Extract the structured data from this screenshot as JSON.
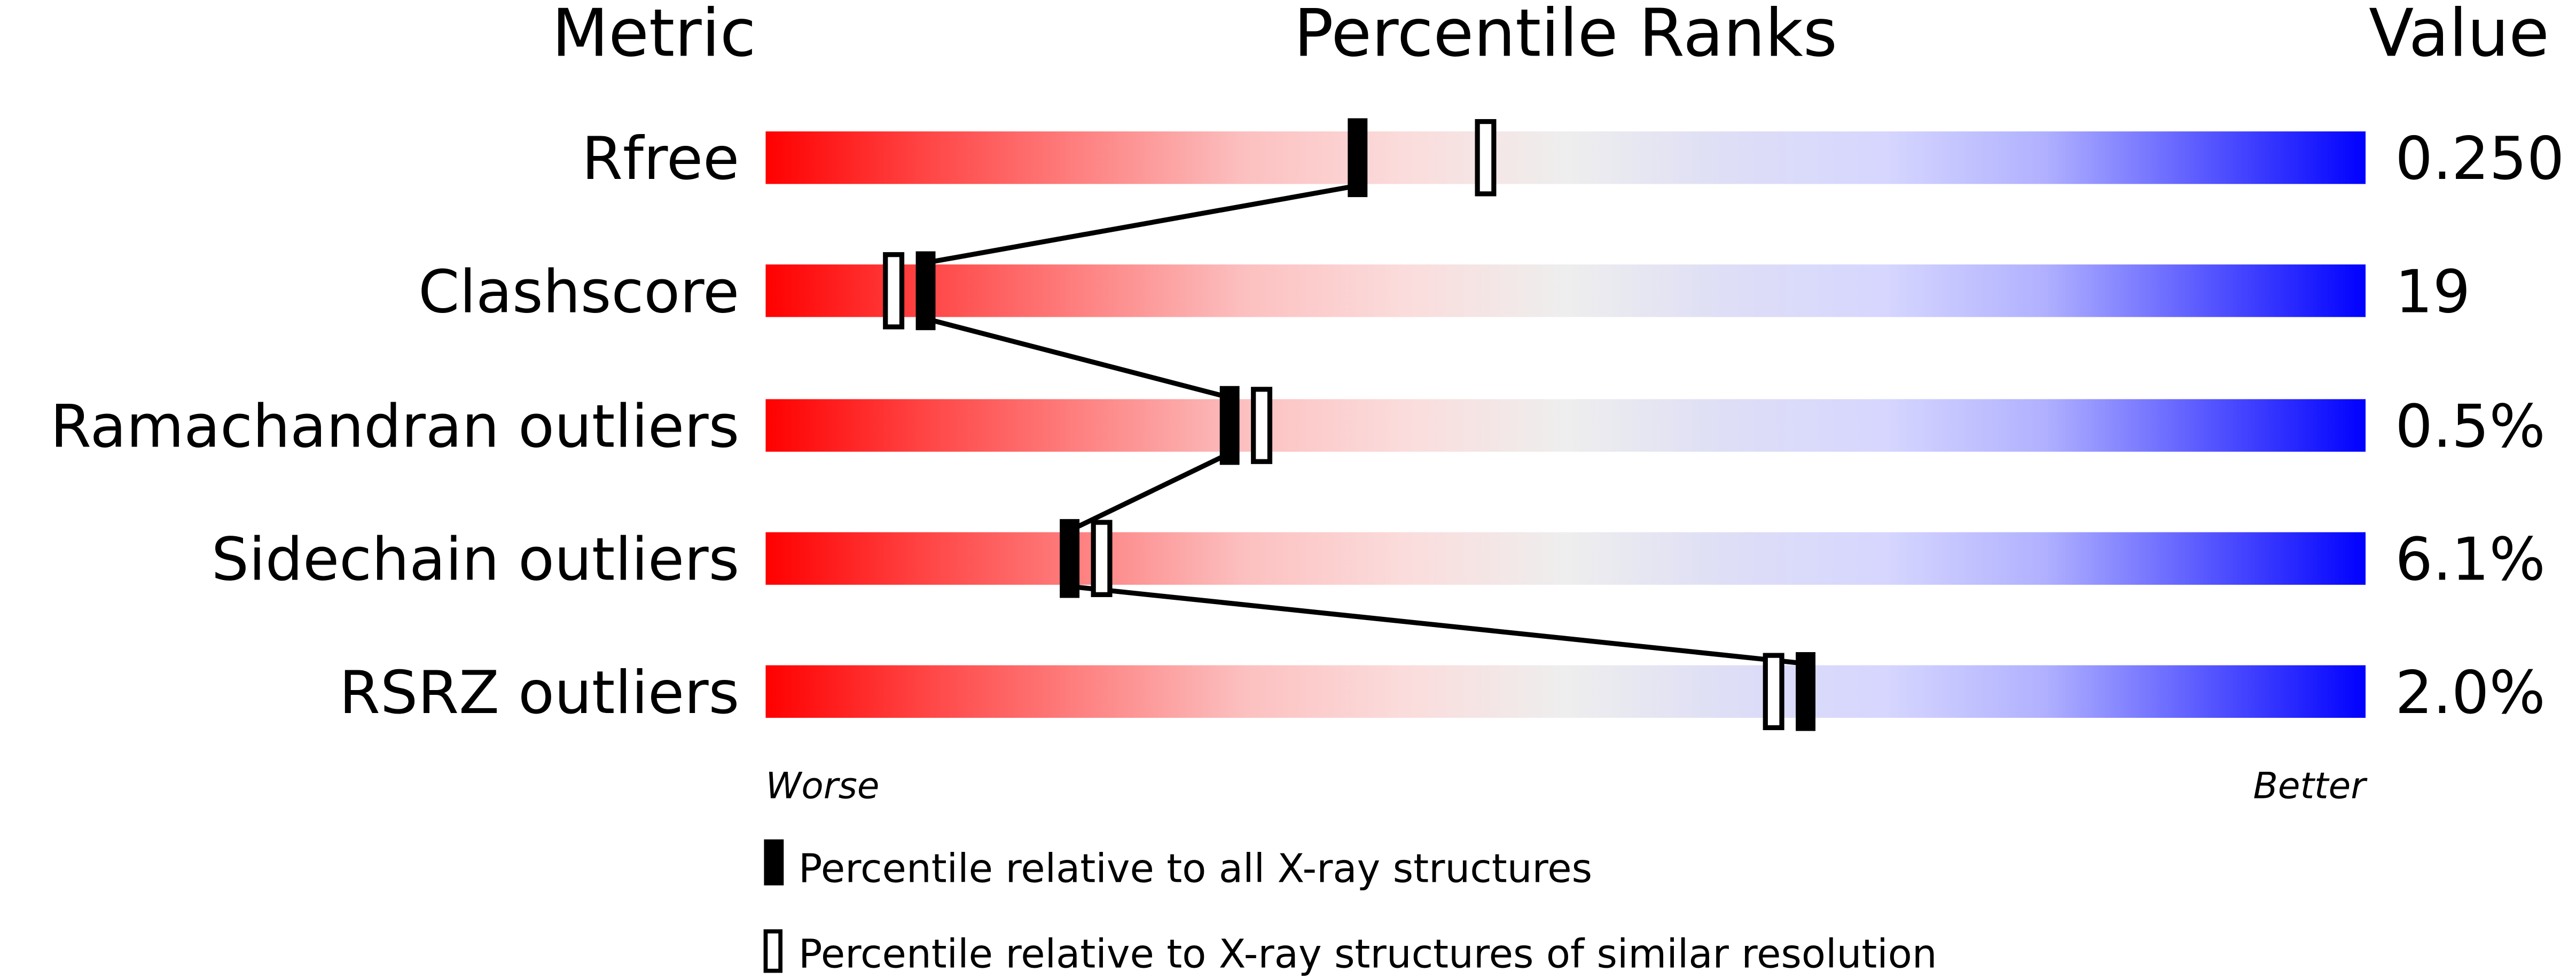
{
  "chart_data": {
    "type": "percentile-bar",
    "headers": {
      "metric": "Metric",
      "ranks": "Percentile Ranks",
      "value": "Value"
    },
    "xlim": [
      0,
      100
    ],
    "axis_labels": {
      "left": "Worse",
      "right": "Better"
    },
    "metrics": [
      {
        "name": "Rfree",
        "value": "0.250",
        "percentile_all": 37,
        "percentile_similar": 45
      },
      {
        "name": "Clashscore",
        "value": "19",
        "percentile_all": 10,
        "percentile_similar": 8
      },
      {
        "name": "Ramachandran outliers",
        "value": "0.5%",
        "percentile_all": 29,
        "percentile_similar": 31
      },
      {
        "name": "Sidechain outliers",
        "value": "6.1%",
        "percentile_all": 19,
        "percentile_similar": 21
      },
      {
        "name": "RSRZ outliers",
        "value": "2.0%",
        "percentile_all": 65,
        "percentile_similar": 63
      }
    ],
    "legend": [
      {
        "marker": "filled",
        "label": "Percentile relative to all X-ray structures"
      },
      {
        "marker": "open",
        "label": "Percentile relative to X-ray structures of similar resolution"
      }
    ],
    "colors": {
      "worse": "#ff0000",
      "middle": "#eeeeee",
      "better": "#0000ff"
    }
  }
}
